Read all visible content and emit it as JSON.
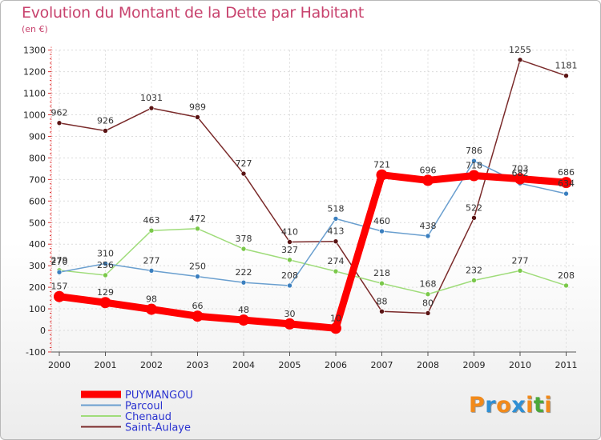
{
  "title": "Evolution du Montant de la Dette par Habitant",
  "subtitle": "(en €)",
  "logo": {
    "letters": [
      "P",
      "r",
      "o",
      "x",
      "i",
      "t",
      "i"
    ],
    "colors": [
      "#f28a1a",
      "#2f8fd4",
      "#f28a1a",
      "#2f8fd4",
      "#f28a1a",
      "#4aa83a",
      "#f28a1a"
    ]
  },
  "chart_data": {
    "type": "line",
    "x": [
      "2000",
      "2001",
      "2002",
      "2003",
      "2004",
      "2005",
      "2006",
      "2007",
      "2008",
      "2009",
      "2010",
      "2011"
    ],
    "ylim": [
      -100,
      1300
    ],
    "yticks": [
      "-100",
      "0",
      "100",
      "200",
      "300",
      "400",
      "500",
      "600",
      "700",
      "800",
      "900",
      "1000",
      "1100",
      "1200",
      "1300"
    ],
    "grid": true,
    "legend_position": "bottom-left",
    "series": [
      {
        "name": "PUYMANGOU",
        "color": "#ff0000",
        "marker": "#ff0000",
        "values": [
          157,
          129,
          98,
          66,
          48,
          30,
          10,
          721,
          696,
          718,
          703,
          686
        ],
        "labels": [
          "157",
          "129",
          "98",
          "66",
          "48",
          "30",
          "10",
          "721",
          "696",
          "718",
          "703",
          "686"
        ]
      },
      {
        "name": "Parcoul",
        "color": "#6a9fcf",
        "marker": "#3a7fbf",
        "values": [
          270,
          310,
          277,
          250,
          222,
          208,
          518,
          460,
          438,
          786,
          682,
          634
        ],
        "labels": [
          "270",
          "310",
          "277",
          "250",
          "222",
          "208",
          "518",
          "460",
          "438",
          "786",
          "682",
          "634"
        ]
      },
      {
        "name": "Chenaud",
        "color": "#9fdc7a",
        "marker": "#7ac84a",
        "values": [
          279,
          256,
          463,
          472,
          378,
          327,
          274,
          218,
          168,
          232,
          277,
          208
        ],
        "labels": [
          "279",
          "256",
          "463",
          "472",
          "378",
          "327",
          "274",
          "218",
          "168",
          "232",
          "277",
          "208"
        ]
      },
      {
        "name": "Saint-Aulaye",
        "color": "#7a2a2a",
        "marker": "#5a1414",
        "values": [
          962,
          926,
          1031,
          989,
          727,
          410,
          413,
          88,
          80,
          522,
          1255,
          1181
        ],
        "labels": [
          "962",
          "926",
          "1031",
          "989",
          "727",
          "410",
          "413",
          "88",
          "80",
          "522",
          "1255",
          "1181"
        ]
      }
    ]
  }
}
